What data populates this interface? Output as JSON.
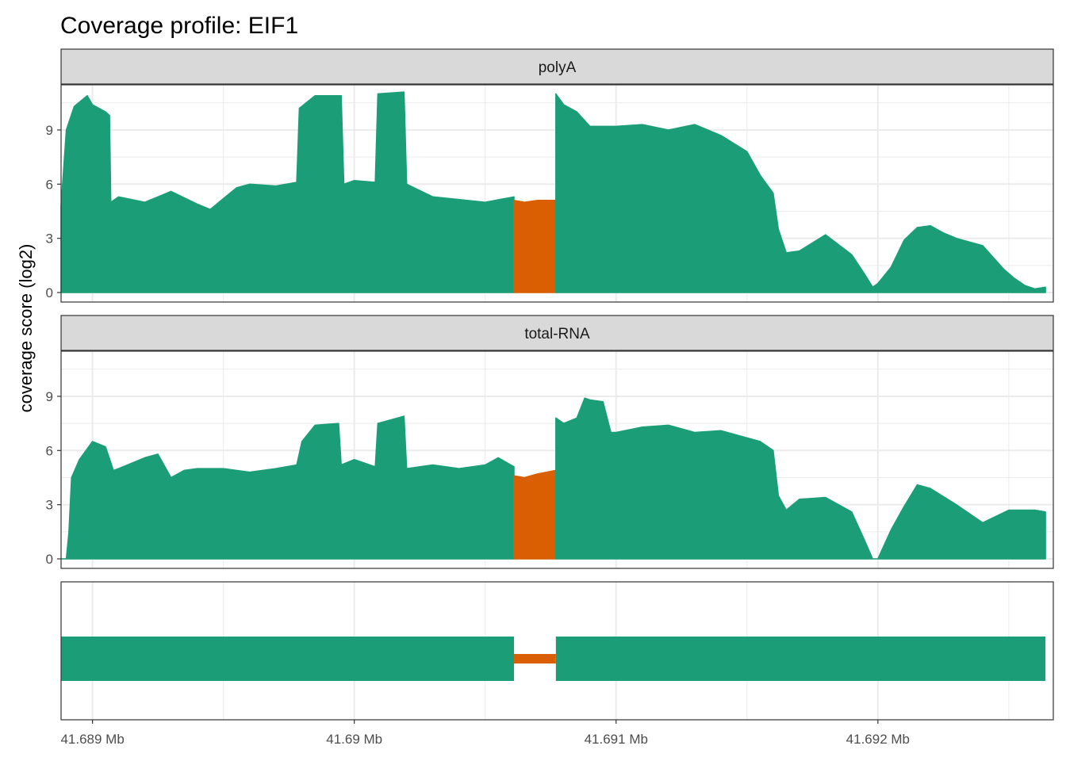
{
  "title": "Coverage profile: EIF1",
  "y_axis_title": "coverage score (log2)",
  "colors": {
    "exon": "#1B9E77",
    "intron": "#D95F02",
    "strip_bg": "#D9D9D9",
    "grid": "#EBEBEB",
    "panel_border": "#333333"
  },
  "chart_data": [
    {
      "type": "area",
      "facet": "polyA",
      "ylabel": "coverage score (log2)",
      "ylim": [
        0,
        11.5
      ],
      "yticks": [
        0,
        3,
        6,
        9
      ],
      "x_units": "Mb",
      "xlim": [
        41.68888,
        41.69267
      ],
      "grid": true,
      "series": [
        {
          "region": "exon",
          "x": [
            41.68888,
            41.6889,
            41.68893,
            41.68898,
            41.689,
            41.68905,
            41.689065,
            41.68907,
            41.6891,
            41.6892,
            41.68925,
            41.6893,
            41.6894,
            41.68945,
            41.6895,
            41.68955,
            41.6896,
            41.6897,
            41.68978,
            41.68979,
            41.68985,
            41.68995,
            41.68996,
            41.69,
            41.69008,
            41.69009,
            41.69019,
            41.6902,
            41.6903,
            41.6905,
            41.69061
          ],
          "values": [
            4.8,
            9.0,
            10.3,
            10.9,
            10.4,
            10.0,
            9.8,
            5.0,
            5.3,
            5.0,
            5.3,
            5.6,
            4.9,
            4.6,
            5.2,
            5.8,
            6.0,
            5.9,
            6.1,
            10.2,
            10.9,
            10.9,
            6.0,
            6.2,
            6.1,
            11.0,
            11.1,
            6.0,
            5.3,
            5.0,
            5.3
          ]
        },
        {
          "region": "intron",
          "x": [
            41.69061,
            41.69065,
            41.6907,
            41.69077
          ],
          "values": [
            5.1,
            5.0,
            5.1,
            5.1
          ]
        },
        {
          "region": "exon",
          "x": [
            41.69077,
            41.6908,
            41.69085,
            41.6909,
            41.691,
            41.6911,
            41.6912,
            41.6913,
            41.6914,
            41.6915,
            41.69155,
            41.6916,
            41.69162,
            41.69165,
            41.6917,
            41.6918,
            41.6919,
            41.69195,
            41.69198,
            41.692,
            41.69205,
            41.6921,
            41.69215,
            41.6922,
            41.69225,
            41.6923,
            41.6924,
            41.69248,
            41.69252,
            41.69256,
            41.6926,
            41.69264
          ],
          "values": [
            11.0,
            10.4,
            10.0,
            9.2,
            9.2,
            9.3,
            9.0,
            9.3,
            8.7,
            7.8,
            6.5,
            5.5,
            3.5,
            2.2,
            2.3,
            3.2,
            2.1,
            1.0,
            0.3,
            0.5,
            1.4,
            2.9,
            3.6,
            3.7,
            3.3,
            3.0,
            2.6,
            1.3,
            0.8,
            0.4,
            0.2,
            0.3
          ]
        }
      ]
    },
    {
      "type": "area",
      "facet": "total-RNA",
      "ylabel": "coverage score (log2)",
      "ylim": [
        0,
        11.5
      ],
      "yticks": [
        0,
        3,
        6,
        9
      ],
      "x_units": "Mb",
      "xlim": [
        41.68888,
        41.69267
      ],
      "grid": true,
      "series": [
        {
          "region": "exon",
          "x": [
            41.68888,
            41.6889,
            41.68891,
            41.68892,
            41.68895,
            41.689,
            41.68905,
            41.68908,
            41.6891,
            41.6892,
            41.68925,
            41.6893,
            41.68935,
            41.6894,
            41.6895,
            41.6896,
            41.6897,
            41.68978,
            41.6898,
            41.68985,
            41.68994,
            41.68995,
            41.69,
            41.69008,
            41.69009,
            41.69019,
            41.6902,
            41.6903,
            41.6904,
            41.6905,
            41.69055,
            41.69061
          ],
          "values": [
            0.0,
            0.0,
            1.5,
            4.5,
            5.5,
            6.5,
            6.2,
            4.9,
            5.0,
            5.6,
            5.8,
            4.5,
            4.9,
            5.0,
            5.0,
            4.8,
            5.0,
            5.2,
            6.5,
            7.4,
            7.5,
            5.2,
            5.5,
            5.1,
            7.5,
            7.9,
            5.0,
            5.2,
            5.0,
            5.2,
            5.6,
            5.1
          ]
        },
        {
          "region": "intron",
          "x": [
            41.69061,
            41.69065,
            41.6907,
            41.69077
          ],
          "values": [
            4.6,
            4.5,
            4.7,
            4.9
          ]
        },
        {
          "region": "exon",
          "x": [
            41.69077,
            41.6908,
            41.69085,
            41.69088,
            41.6909,
            41.69095,
            41.69098,
            41.691,
            41.6911,
            41.6912,
            41.6913,
            41.6914,
            41.6915,
            41.69155,
            41.6916,
            41.69162,
            41.69165,
            41.6917,
            41.6918,
            41.6919,
            41.69195,
            41.69198,
            41.692,
            41.69205,
            41.6921,
            41.69215,
            41.6922,
            41.6923,
            41.6924,
            41.6925,
            41.6926,
            41.69264
          ],
          "values": [
            7.8,
            7.5,
            7.8,
            8.9,
            8.8,
            8.7,
            7.0,
            7.0,
            7.3,
            7.4,
            7.0,
            7.1,
            6.7,
            6.5,
            6.0,
            3.5,
            2.7,
            3.3,
            3.4,
            2.6,
            1.0,
            0.0,
            0.0,
            1.6,
            2.9,
            4.1,
            3.9,
            3.0,
            2.0,
            2.7,
            2.7,
            2.6
          ]
        }
      ]
    },
    {
      "type": "gene_model",
      "x_units": "Mb",
      "xlim": [
        41.68888,
        41.69267
      ],
      "segments": [
        {
          "region": "exon",
          "start": 41.68888,
          "end": 41.69061
        },
        {
          "region": "intron",
          "start": 41.69061,
          "end": 41.69077
        },
        {
          "region": "exon",
          "start": 41.69077,
          "end": 41.69264
        }
      ]
    }
  ],
  "x_axis": {
    "ticks": [
      41.689,
      41.69,
      41.691,
      41.692
    ],
    "tick_labels": [
      "41.689 Mb",
      "41.69 Mb",
      "41.691 Mb",
      "41.692 Mb"
    ]
  }
}
